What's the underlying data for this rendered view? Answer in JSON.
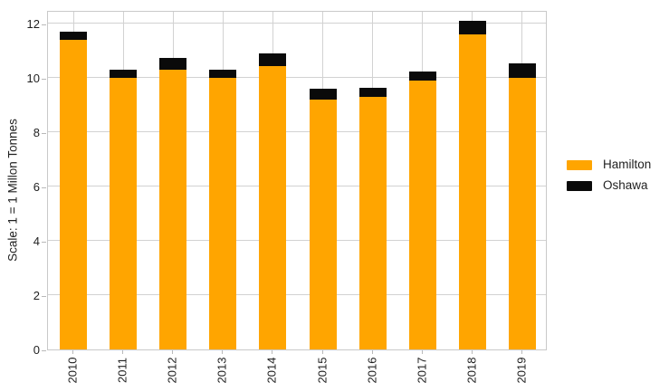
{
  "chart_data": {
    "type": "bar",
    "stacked": true,
    "title": "",
    "xlabel": "",
    "ylabel": "Scale: 1 = 1 Millon Tonnes",
    "categories": [
      "2010",
      "2011",
      "2012",
      "2013",
      "2014",
      "2015",
      "2016",
      "2017",
      "2018",
      "2019"
    ],
    "series": [
      {
        "name": "Hamilton",
        "color": "#FFA500",
        "values": [
          11.4,
          10.0,
          10.3,
          10.0,
          10.45,
          9.2,
          9.3,
          9.9,
          11.6,
          10.0
        ]
      },
      {
        "name": "Oshawa",
        "color": "#0a0a0a",
        "values": [
          0.3,
          0.3,
          0.45,
          0.3,
          0.45,
          0.4,
          0.35,
          0.35,
          0.5,
          0.55
        ]
      }
    ],
    "totals": [
      11.7,
      10.3,
      10.75,
      10.3,
      10.9,
      9.6,
      9.65,
      10.25,
      12.1,
      10.55
    ],
    "ylim": [
      0,
      12
    ],
    "yticks": [
      0,
      2,
      4,
      6,
      8,
      10,
      12
    ],
    "xtick_rotation": 90,
    "grid": true,
    "legend_position": "center right outside"
  },
  "legend": {
    "items": [
      {
        "label": "Hamilton",
        "color": "#FFA500"
      },
      {
        "label": "Oshawa",
        "color": "#0a0a0a"
      }
    ]
  }
}
